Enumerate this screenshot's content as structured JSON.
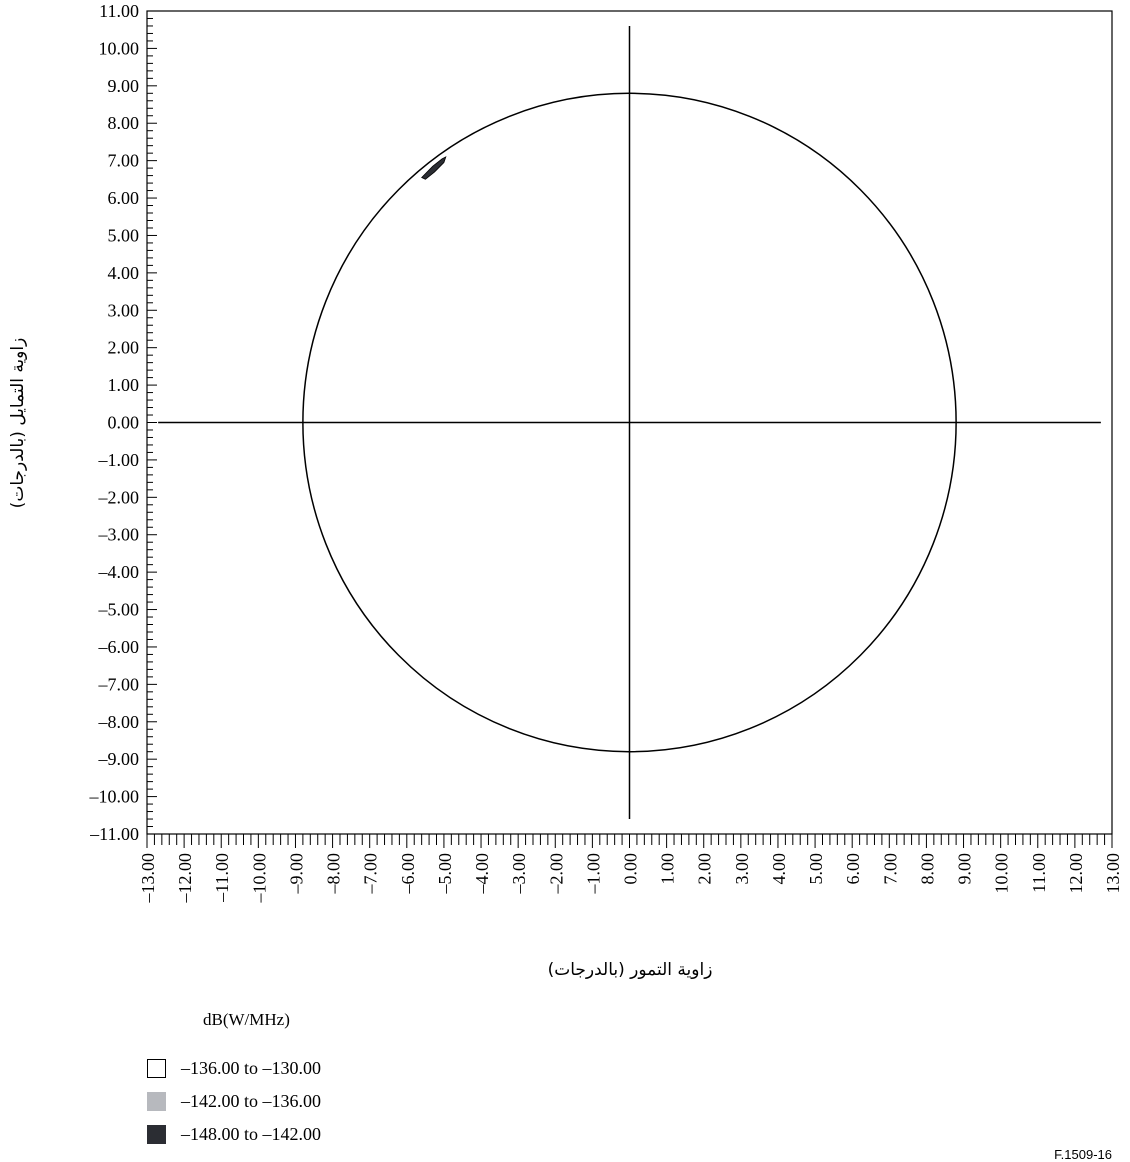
{
  "chart_data": {
    "type": "contour",
    "xlabel": "زاوية التمور (بالدرجات)",
    "ylabel": "زاوية التمايل (بالدرجات)",
    "xlim": [
      -13,
      13
    ],
    "ylim": [
      -11,
      11
    ],
    "x_ticks": [
      "–13.00",
      "–12.00",
      "–11.00",
      "–10.00",
      "–9.00",
      "–8.00",
      "–7.00",
      "–6.00",
      "–5.00",
      "–4.00",
      "–3.00",
      "–2.00",
      "–1.00",
      "0.00",
      "1.00",
      "2.00",
      "3.00",
      "4.00",
      "5.00",
      "6.00",
      "7.00",
      "8.00",
      "9.00",
      "10.00",
      "11.00",
      "12.00",
      "13.00"
    ],
    "y_ticks": [
      "11.00",
      "10.00",
      "9.00",
      "8.00",
      "7.00",
      "6.00",
      "5.00",
      "4.00",
      "3.00",
      "2.00",
      "1.00",
      "0.00",
      "–1.00",
      "–2.00",
      "–3.00",
      "–4.00",
      "–5.00",
      "–6.00",
      "–7.00",
      "–8.00",
      "–9.00",
      "–10.00",
      "–11.00"
    ],
    "circle_radius": 8.8,
    "axis_lines": {
      "horizontal_x_range": [
        -12.7,
        12.7
      ],
      "vertical_y_range": [
        -10.6,
        10.6
      ]
    },
    "contour_region": {
      "level": "–148.00 to –142.00",
      "points": [
        [
          -5.6,
          6.55
        ],
        [
          -5.3,
          6.85
        ],
        [
          -5.05,
          7.05
        ],
        [
          -4.95,
          7.1
        ],
        [
          -5.0,
          6.95
        ],
        [
          -5.25,
          6.7
        ],
        [
          -5.5,
          6.5
        ]
      ]
    },
    "legend": {
      "title": "dB(W/MHz)",
      "items": [
        {
          "label": "–136.00 to –130.00",
          "color": "#ffffff"
        },
        {
          "label": "–142.00 to –136.00",
          "color": "#b7b9be"
        },
        {
          "label": "–148.00 to –142.00",
          "color": "#2b2d33"
        }
      ]
    }
  },
  "figure_code": "F.1509-16"
}
